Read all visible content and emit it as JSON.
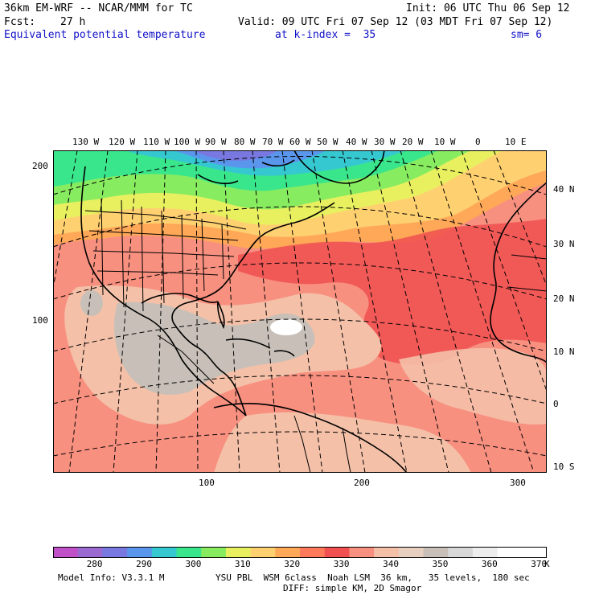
{
  "header": {
    "model": "36km EM-WRF -- NCAR/MMM for TC",
    "init": "Init: 06 UTC Thu 06 Sep 12",
    "fcst_label": "Fcst:",
    "fcst_value": "27 h",
    "valid": "Valid: 09 UTC Fri 07 Sep 12 (03 MDT Fri 07 Sep 12)",
    "field": "Equivalent potential temperature",
    "level": "at k-index =  35",
    "smoothing": "sm= 6"
  },
  "map": {
    "top_lon_labels": [
      "130 W",
      "120 W",
      "110 W",
      "100 W",
      "90 W",
      "80 W",
      "70 W",
      "60 W",
      "50 W",
      "40 W",
      "30 W",
      "20 W",
      "10 W",
      "0",
      "10 E"
    ],
    "right_lat_labels": [
      "40 N",
      "30 N",
      "20 N",
      "10 N",
      "0",
      "10 S"
    ],
    "left_y_labels": [
      "200",
      "100"
    ],
    "bottom_x_labels": [
      "100",
      "200",
      "300"
    ]
  },
  "colorbar": {
    "labels": [
      "280",
      "290",
      "300",
      "310",
      "320",
      "330",
      "340",
      "350",
      "360",
      "370"
    ],
    "unit": "K",
    "colors": [
      "#c050c8",
      "#9a6ad0",
      "#7878e0",
      "#5a96ec",
      "#36c8d0",
      "#3ae68c",
      "#88ec60",
      "#e8f060",
      "#ffd070",
      "#ffa858",
      "#ff7a5a",
      "#f05050",
      "#f89080",
      "#f4c0a8",
      "#e8d0c0",
      "#c8c0b8",
      "#d8d8d8",
      "#eeeeee",
      "#ffffff",
      "#ffffff"
    ]
  },
  "footer": {
    "model_info": "Model Info: V3.3.1 M",
    "physics": "YSU PBL  WSM 6class  Noah LSM  36 km,   35 levels,  180 sec",
    "physics2": "DIFF: simple KM, 2D Smagor"
  }
}
